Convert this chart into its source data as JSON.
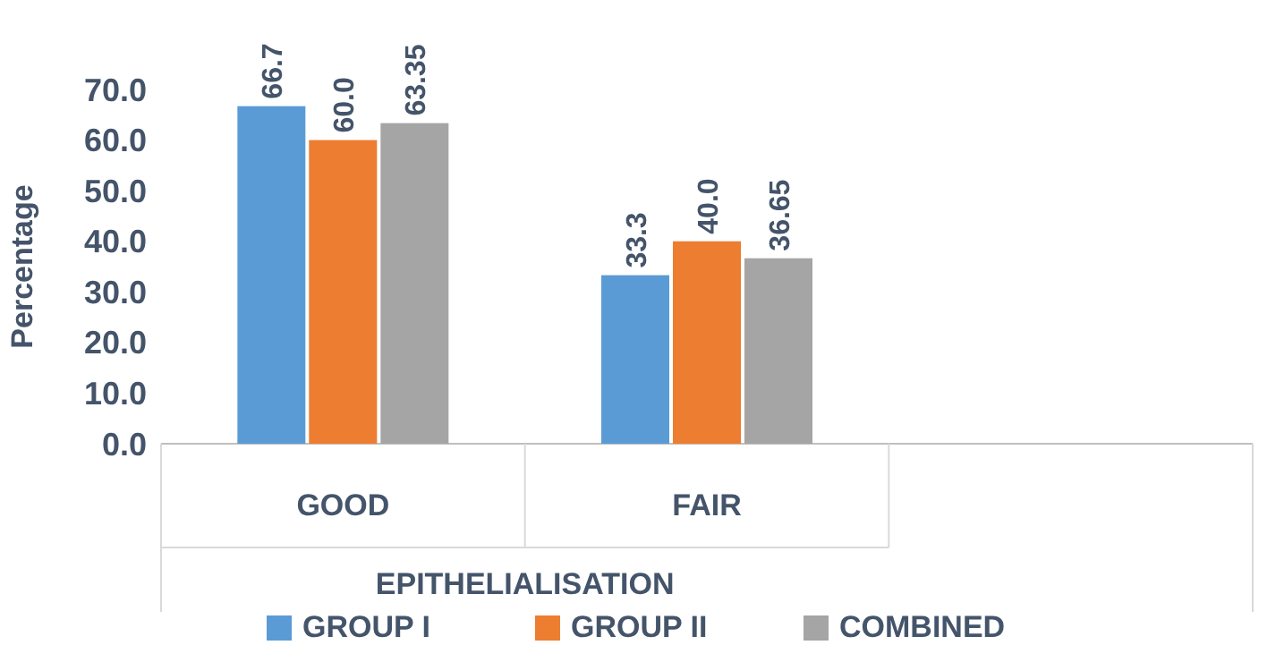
{
  "chart_data": {
    "type": "bar",
    "ylabel": "Percentage",
    "xlabel": "EPITHELIALISATION",
    "categories": [
      "GOOD",
      "FAIR",
      null
    ],
    "series": [
      {
        "name": "GROUP I",
        "color": "#5b9bd5",
        "values": [
          66.7,
          33.3,
          null
        ],
        "value_labels": [
          "66.7",
          "33.3",
          null
        ]
      },
      {
        "name": "GROUP II",
        "color": "#ed7d31",
        "values": [
          60.0,
          40.0,
          null
        ],
        "value_labels": [
          "60.0",
          "40.0",
          null
        ]
      },
      {
        "name": "COMBINED",
        "color": "#a5a5a5",
        "values": [
          63.35,
          36.65,
          null
        ],
        "value_labels": [
          "63.35",
          "36.65",
          null
        ]
      }
    ],
    "ylim": [
      0,
      70
    ],
    "yticks": [
      {
        "value": 0,
        "label": "0.0"
      },
      {
        "value": 10,
        "label": "10.0"
      },
      {
        "value": 20,
        "label": "20.0"
      },
      {
        "value": 30,
        "label": "30.0"
      },
      {
        "value": 40,
        "label": "40.0"
      },
      {
        "value": 50,
        "label": "50.0"
      },
      {
        "value": 60,
        "label": "60.0"
      },
      {
        "value": 70,
        "label": "70.0"
      }
    ],
    "grid": false,
    "legend": "bottom"
  }
}
